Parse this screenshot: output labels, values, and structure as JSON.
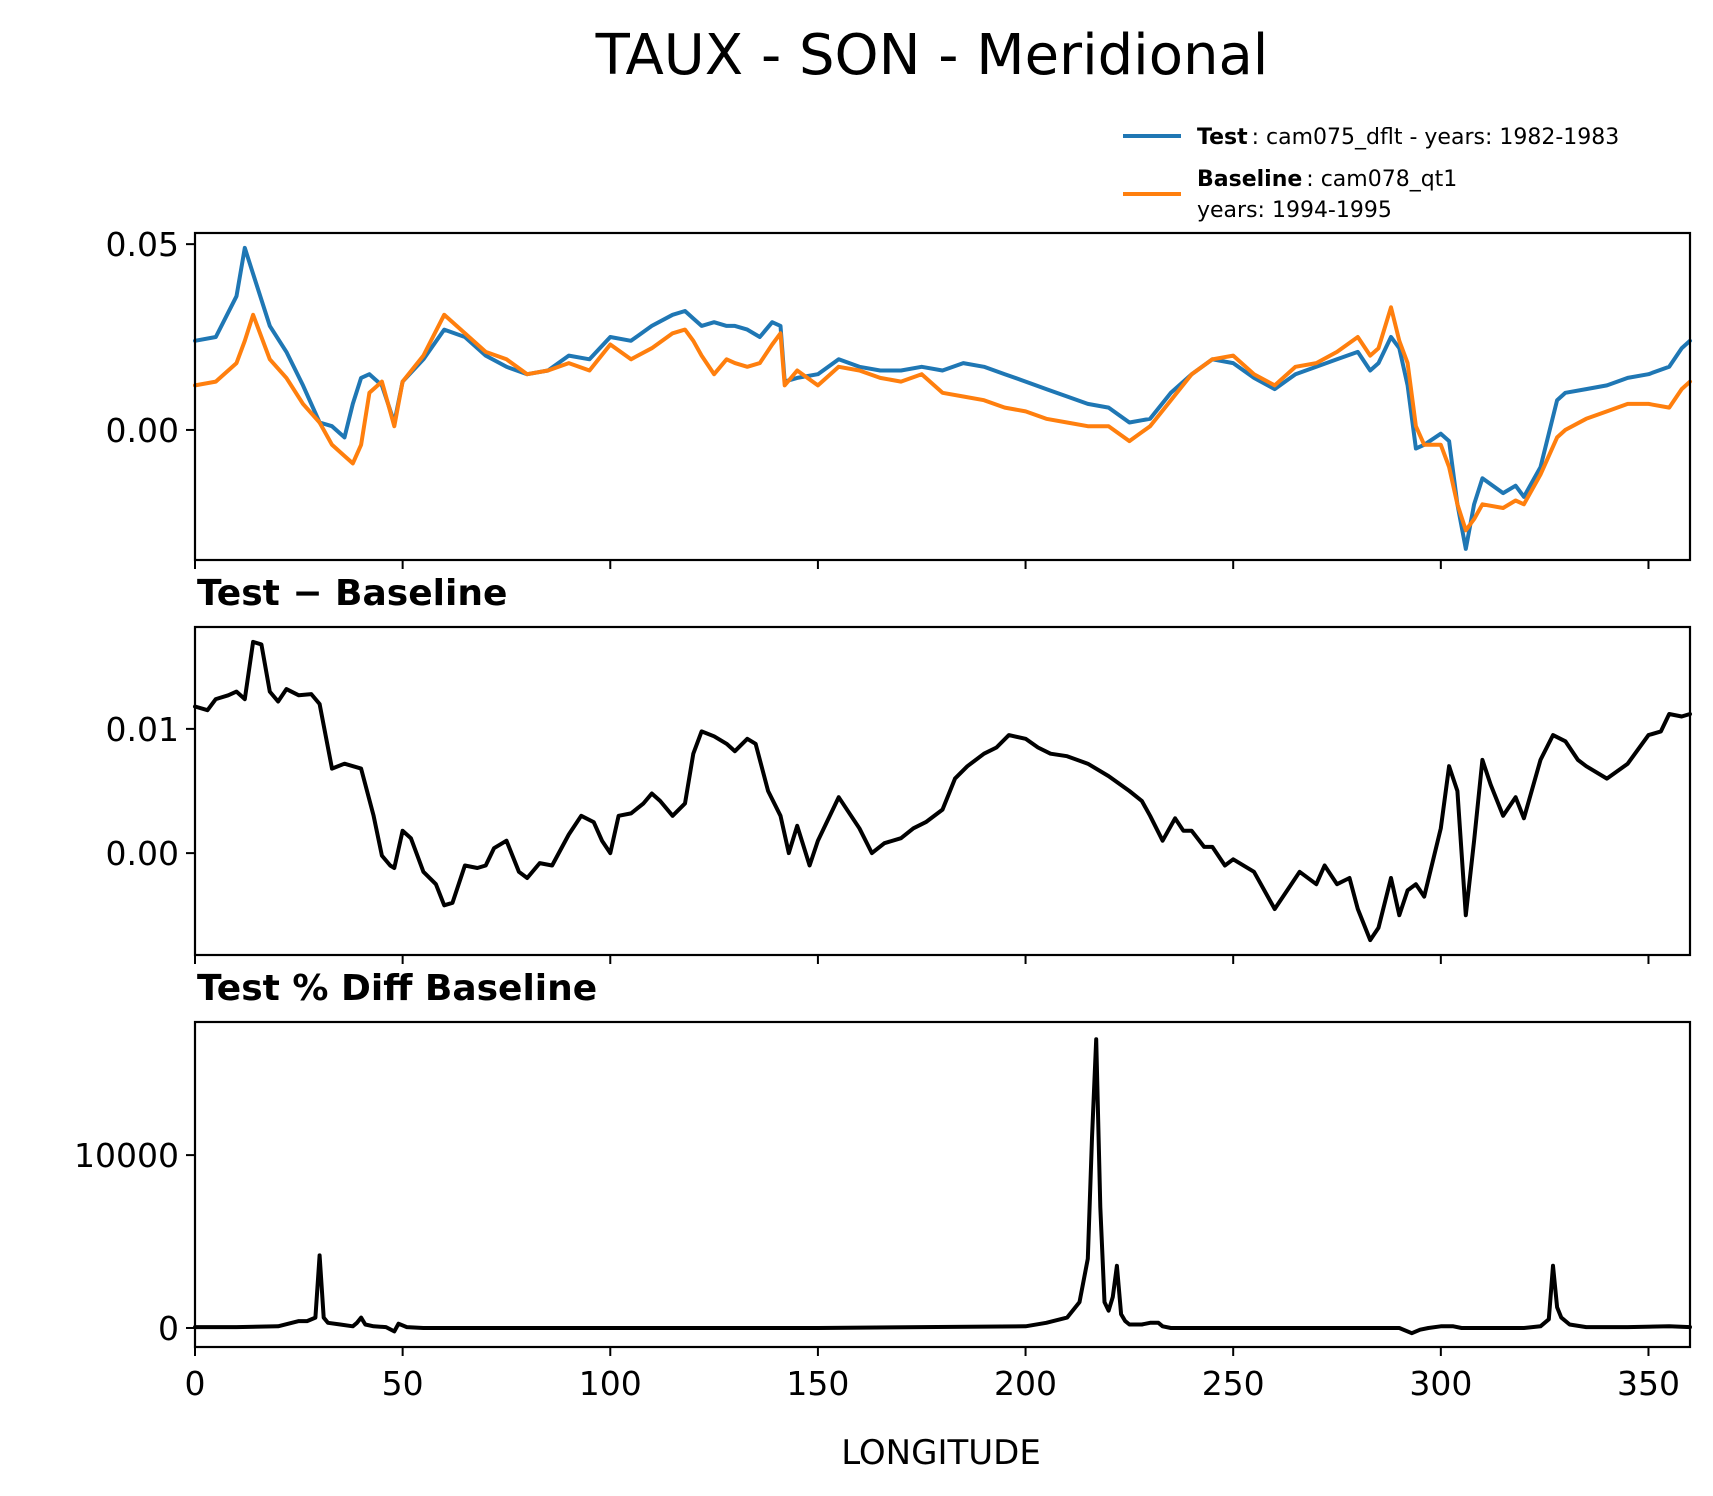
{
  "figure": {
    "title": "TAUX - SON - Meridional",
    "xlabel": "LONGITUDE"
  },
  "legend": {
    "items": [
      {
        "bold": "Test",
        "lines": [
          ": cam075_dflt - years: 1982-1983"
        ],
        "color": "#1f77b4"
      },
      {
        "bold": "Baseline",
        "lines": [
          ": cam078_qt1",
          "years: 1994-1995"
        ],
        "color": "#ff7f0e"
      }
    ]
  },
  "chart_data": [
    {
      "type": "line",
      "title": "",
      "xlim": [
        0,
        360
      ],
      "ylim": [
        -0.035,
        0.053
      ],
      "yticks": [
        0.0,
        0.05
      ],
      "ytick_labels": [
        "0.00",
        "0.05"
      ],
      "xticks": [
        0,
        50,
        100,
        150,
        200,
        250,
        300,
        350
      ],
      "x": [
        0,
        5,
        10,
        12,
        14,
        18,
        22,
        26,
        30,
        33,
        36,
        38,
        40,
        42,
        45,
        48,
        50,
        55,
        60,
        65,
        70,
        75,
        80,
        85,
        90,
        95,
        100,
        105,
        110,
        115,
        118,
        120,
        122,
        125,
        128,
        130,
        133,
        136,
        139,
        141,
        142,
        145,
        150,
        155,
        160,
        165,
        170,
        175,
        180,
        185,
        190,
        195,
        200,
        205,
        210,
        215,
        220,
        225,
        230,
        235,
        240,
        245,
        250,
        255,
        260,
        265,
        270,
        275,
        280,
        283,
        285,
        288,
        290,
        292,
        294,
        296,
        300,
        302,
        304,
        306,
        308,
        310,
        315,
        318,
        320,
        324,
        328,
        330,
        335,
        340,
        345,
        350,
        355,
        358,
        360
      ],
      "series": [
        {
          "name": "Test",
          "color": "#1f77b4",
          "values": [
            0.024,
            0.025,
            0.036,
            0.049,
            0.042,
            0.028,
            0.021,
            0.012,
            0.002,
            0.001,
            -0.002,
            0.007,
            0.014,
            0.015,
            0.012,
            0.002,
            0.013,
            0.019,
            0.027,
            0.025,
            0.02,
            0.017,
            0.015,
            0.016,
            0.02,
            0.019,
            0.025,
            0.024,
            0.028,
            0.031,
            0.032,
            0.03,
            0.028,
            0.029,
            0.028,
            0.028,
            0.027,
            0.025,
            0.029,
            0.028,
            0.013,
            0.014,
            0.015,
            0.019,
            0.017,
            0.016,
            0.016,
            0.017,
            0.016,
            0.018,
            0.017,
            0.015,
            0.013,
            0.011,
            0.009,
            0.007,
            0.006,
            0.002,
            0.003,
            0.01,
            0.015,
            0.019,
            0.018,
            0.014,
            0.011,
            0.015,
            0.017,
            0.019,
            0.021,
            0.016,
            0.018,
            0.025,
            0.022,
            0.012,
            -0.005,
            -0.004,
            -0.001,
            -0.003,
            -0.02,
            -0.032,
            -0.02,
            -0.013,
            -0.017,
            -0.015,
            -0.018,
            -0.01,
            0.008,
            0.01,
            0.011,
            0.012,
            0.014,
            0.015,
            0.017,
            0.022,
            0.024
          ]
        },
        {
          "name": "Baseline",
          "color": "#ff7f0e",
          "values": [
            0.012,
            0.013,
            0.018,
            0.024,
            0.031,
            0.019,
            0.014,
            0.007,
            0.002,
            -0.004,
            -0.007,
            -0.009,
            -0.004,
            0.01,
            0.013,
            0.001,
            0.013,
            0.02,
            0.031,
            0.026,
            0.021,
            0.019,
            0.015,
            0.016,
            0.018,
            0.016,
            0.023,
            0.019,
            0.022,
            0.026,
            0.027,
            0.024,
            0.02,
            0.015,
            0.019,
            0.018,
            0.017,
            0.018,
            0.023,
            0.026,
            0.012,
            0.016,
            0.012,
            0.017,
            0.016,
            0.014,
            0.013,
            0.015,
            0.01,
            0.009,
            0.008,
            0.006,
            0.005,
            0.003,
            0.002,
            0.001,
            0.001,
            -0.003,
            0.001,
            0.008,
            0.015,
            0.019,
            0.02,
            0.015,
            0.012,
            0.017,
            0.018,
            0.021,
            0.025,
            0.02,
            0.022,
            0.033,
            0.024,
            0.018,
            0.001,
            -0.004,
            -0.004,
            -0.01,
            -0.02,
            -0.027,
            -0.024,
            -0.02,
            -0.021,
            -0.019,
            -0.02,
            -0.012,
            -0.002,
            0.0,
            0.003,
            0.005,
            0.007,
            0.007,
            0.006,
            0.011,
            0.013
          ]
        }
      ]
    },
    {
      "type": "line",
      "title": "Test − Baseline",
      "xlim": [
        0,
        360
      ],
      "ylim": [
        -0.0082,
        0.0182
      ],
      "yticks": [
        0.0,
        0.01
      ],
      "ytick_labels": [
        "0.00",
        "0.01"
      ],
      "xticks": [
        0,
        50,
        100,
        150,
        200,
        250,
        300,
        350
      ],
      "x": [
        0,
        3,
        5,
        8,
        10,
        12,
        14,
        16,
        18,
        20,
        22,
        25,
        28,
        30,
        33,
        36,
        40,
        43,
        45,
        47,
        48,
        50,
        52,
        55,
        58,
        60,
        62,
        65,
        68,
        70,
        72,
        75,
        78,
        80,
        83,
        86,
        90,
        93,
        96,
        98,
        100,
        102,
        105,
        108,
        110,
        112,
        115,
        118,
        120,
        122,
        125,
        128,
        130,
        133,
        135,
        138,
        141,
        143,
        145,
        148,
        150,
        155,
        160,
        163,
        166,
        170,
        173,
        176,
        180,
        183,
        186,
        190,
        193,
        196,
        200,
        203,
        206,
        210,
        215,
        220,
        225,
        228,
        230,
        233,
        236,
        238,
        240,
        243,
        245,
        248,
        250,
        255,
        260,
        263,
        266,
        270,
        272,
        275,
        278,
        280,
        283,
        285,
        288,
        290,
        292,
        294,
        296,
        300,
        302,
        304,
        306,
        308,
        310,
        312,
        315,
        318,
        320,
        324,
        327,
        330,
        333,
        335,
        340,
        345,
        350,
        353,
        355,
        358,
        360
      ],
      "series": [
        {
          "name": "",
          "color": "#000000",
          "values": [
            0.0118,
            0.0115,
            0.0124,
            0.0127,
            0.013,
            0.0124,
            0.017,
            0.0168,
            0.013,
            0.0122,
            0.0132,
            0.0127,
            0.0128,
            0.012,
            0.0068,
            0.0072,
            0.0068,
            0.003,
            -0.0002,
            -0.001,
            -0.0012,
            0.0018,
            0.0012,
            -0.0015,
            -0.0025,
            -0.0042,
            -0.004,
            -0.001,
            -0.0012,
            -0.001,
            0.0004,
            0.001,
            -0.0015,
            -0.002,
            -0.0008,
            -0.001,
            0.0015,
            0.003,
            0.0025,
            0.001,
            0.0,
            0.003,
            0.0032,
            0.004,
            0.0048,
            0.0042,
            0.003,
            0.004,
            0.008,
            0.0098,
            0.0094,
            0.0088,
            0.0082,
            0.0092,
            0.0088,
            0.005,
            0.003,
            0.0,
            0.0022,
            -0.001,
            0.001,
            0.0045,
            0.002,
            0.0,
            0.0008,
            0.0012,
            0.002,
            0.0025,
            0.0035,
            0.006,
            0.007,
            0.008,
            0.0085,
            0.0095,
            0.0092,
            0.0085,
            0.008,
            0.0078,
            0.0072,
            0.0062,
            0.005,
            0.0042,
            0.003,
            0.001,
            0.0028,
            0.0018,
            0.0018,
            0.0005,
            0.0005,
            -0.001,
            -0.0005,
            -0.0015,
            -0.0045,
            -0.003,
            -0.0015,
            -0.0025,
            -0.001,
            -0.0025,
            -0.002,
            -0.0045,
            -0.007,
            -0.006,
            -0.002,
            -0.005,
            -0.003,
            -0.0025,
            -0.0035,
            0.002,
            0.007,
            0.005,
            -0.005,
            0.001,
            0.0075,
            0.0055,
            0.003,
            0.0045,
            0.0028,
            0.0075,
            0.0095,
            0.009,
            0.0075,
            0.007,
            0.006,
            0.0072,
            0.0095,
            0.0098,
            0.0112,
            0.011,
            0.0112
          ]
        }
      ]
    },
    {
      "type": "line",
      "title": "Test % Diff Baseline",
      "xlim": [
        0,
        360
      ],
      "ylim": [
        -1100,
        17700
      ],
      "yticks": [
        0,
        10000
      ],
      "ytick_labels": [
        "0",
        "10000"
      ],
      "xticks": [
        0,
        50,
        100,
        150,
        200,
        250,
        300,
        350
      ],
      "xtick_labels": [
        "0",
        "50",
        "100",
        "150",
        "200",
        "250",
        "300",
        "350"
      ],
      "x": [
        0,
        10,
        20,
        25,
        27,
        29,
        30,
        31,
        32,
        35,
        38,
        39,
        40,
        41,
        43,
        46,
        48,
        49,
        51,
        55,
        100,
        150,
        200,
        205,
        210,
        213,
        215,
        216,
        217,
        218,
        219,
        220,
        221,
        222,
        223,
        224,
        225,
        228,
        230,
        232,
        233,
        235,
        250,
        290,
        293,
        295,
        297,
        300,
        303,
        305,
        320,
        324,
        326,
        327,
        328,
        329,
        331,
        335,
        345,
        355,
        360
      ],
      "series": [
        {
          "name": "",
          "color": "#000000",
          "values": [
            50,
            50,
            100,
            400,
            400,
            600,
            4200,
            600,
            300,
            200,
            100,
            300,
            600,
            200,
            100,
            50,
            -200,
            250,
            50,
            0,
            0,
            0,
            100,
            300,
            600,
            1500,
            4000,
            11000,
            16700,
            7000,
            1500,
            1000,
            1800,
            3600,
            800,
            400,
            200,
            200,
            300,
            300,
            100,
            0,
            0,
            0,
            -300,
            -100,
            0,
            100,
            100,
            0,
            0,
            100,
            500,
            3600,
            1200,
            600,
            200,
            50,
            50,
            100,
            50
          ]
        }
      ]
    }
  ]
}
